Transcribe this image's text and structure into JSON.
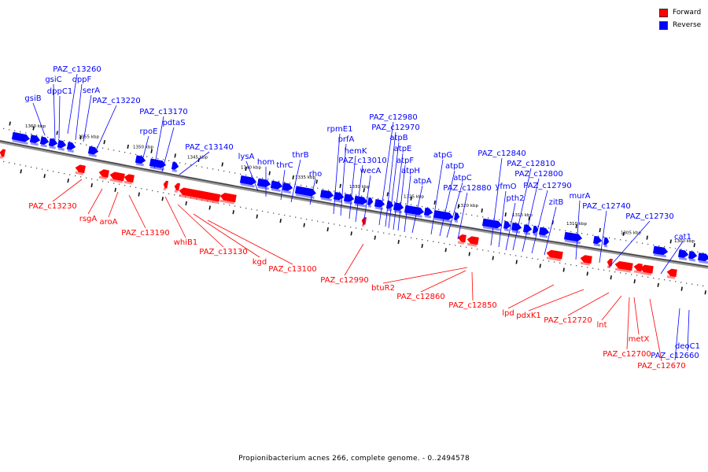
{
  "colors": {
    "forward": "#ff0000",
    "reverse": "#0000ff",
    "backbone": "#666666"
  },
  "legend": [
    {
      "label": "Forward",
      "color": "#ff0000"
    },
    {
      "label": "Reverse",
      "color": "#0000ff"
    }
  ],
  "caption": "Propionibacterium acnes 266, complete genome. - 0..2494578",
  "ticks": [
    "1360 kbp",
    "1355 kbp",
    "1350 kbp",
    "1345 kbp",
    "1340 kbp",
    "1335 kbp",
    "1330 kbp",
    "1325 kbp",
    "1320 kbp",
    "1315 kbp",
    "1310 kbp",
    "1305 kbp",
    "1300 kbp"
  ],
  "reverse_labels": [
    "PAZ_c13260",
    "gsiC",
    "oppF",
    "dppC1",
    "serA",
    "gsiB",
    "PAZ_c13220",
    "PAZ_c13170",
    "pdtaS",
    "rpoE",
    "PAZ_c13140",
    "lysA",
    "hom",
    "thrC",
    "thrB",
    "rho",
    "rpmE1",
    "prfA",
    "hemK",
    "PAZ_c13010",
    "wecA",
    "PAZ_c12980",
    "PAZ_c12970",
    "atpB",
    "atpE",
    "atpF",
    "atpH",
    "atpA",
    "atpG",
    "atpD",
    "atpC",
    "PAZ_c12880",
    "PAZ_c12840",
    "PAZ_c12810",
    "yfmO",
    "PAZ_c12800",
    "PAZ_c12790",
    "pth2",
    "zitB",
    "murA",
    "PAZ_c12740",
    "PAZ_c12730",
    "cat1",
    "deoC1",
    "PAZ_c12660"
  ],
  "forward_labels": [
    "PAZ_c13230",
    "rsgA",
    "aroA",
    "PAZ_c13190",
    "whiB1",
    "PAZ_c13130",
    "kgd",
    "PAZ_c13100",
    "PAZ_c12990",
    "btuR2",
    "PAZ_c12860",
    "PAZ_c12850",
    "lpd",
    "pdxK1",
    "PAZ_c12720",
    "lnt",
    "metX",
    "PAZ_c12700",
    "PAZ_c12670"
  ]
}
